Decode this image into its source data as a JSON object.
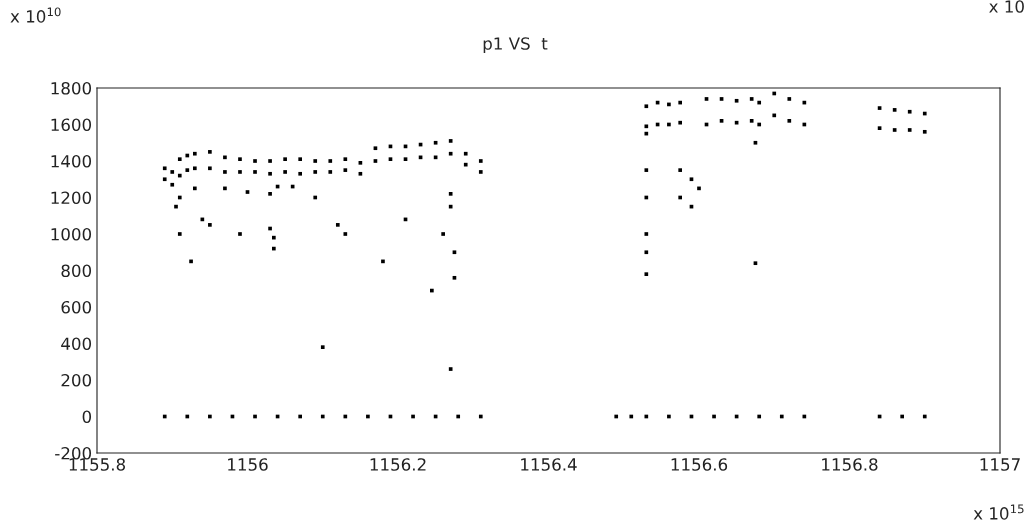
{
  "chart_data": {
    "type": "scatter",
    "title": "p1 VS  t",
    "annotations": [
      "x 10$^{10}$",
      "x 10",
      "x 10$^{15}$"
    ],
    "xlim": [
      1155.8,
      1157
    ],
    "xticks": [
      1155.8,
      1156,
      1156.2,
      1156.4,
      1156.6,
      1156.8,
      1157
    ],
    "ylim": [
      -200,
      1800
    ],
    "yticks": [
      -200,
      0,
      200,
      400,
      600,
      800,
      1000,
      1200,
      1400,
      1600,
      1800
    ],
    "grid": false,
    "legend": false,
    "marker": "square",
    "series": [
      {
        "color": "#000000",
        "x": [
          1155.89,
          1155.89,
          1155.9,
          1155.9,
          1155.91,
          1155.91,
          1155.92,
          1155.92,
          1155.93,
          1155.93,
          1155.95,
          1155.95,
          1155.97,
          1155.97,
          1155.99,
          1155.99,
          1156.01,
          1156.01,
          1156.03,
          1156.03,
          1156.05,
          1156.05,
          1156.07,
          1156.07,
          1156.09,
          1156.09,
          1156.11,
          1156.11,
          1156.13,
          1156.13,
          1156.15,
          1156.15,
          1156.17,
          1156.17,
          1156.19,
          1156.19,
          1156.21,
          1156.21,
          1156.23,
          1156.23,
          1156.25,
          1156.25,
          1156.27,
          1156.27,
          1156.29,
          1156.29,
          1156.31,
          1156.31,
          1155.91,
          1155.93,
          1155.97,
          1156.0,
          1156.03,
          1156.06,
          1156.09,
          1156.04,
          1155.905,
          1155.91,
          1155.925,
          1155.94,
          1155.95,
          1155.99,
          1156.03,
          1156.035,
          1156.035,
          1156.1,
          1156.12,
          1156.13,
          1156.18,
          1156.21,
          1156.245,
          1156.26,
          1156.27,
          1156.27,
          1156.275,
          1156.275,
          1156.27,
          1155.89,
          1155.92,
          1155.95,
          1155.98,
          1156.01,
          1156.04,
          1156.07,
          1156.1,
          1156.13,
          1156.16,
          1156.19,
          1156.22,
          1156.25,
          1156.28,
          1156.31,
          1156.49,
          1156.51,
          1156.53,
          1156.56,
          1156.59,
          1156.62,
          1156.65,
          1156.68,
          1156.71,
          1156.74,
          1156.84,
          1156.87,
          1156.9,
          1156.53,
          1156.53,
          1156.545,
          1156.545,
          1156.56,
          1156.56,
          1156.575,
          1156.575,
          1156.53,
          1156.53,
          1156.53,
          1156.53,
          1156.53,
          1156.53,
          1156.575,
          1156.575,
          1156.59,
          1156.59,
          1156.6,
          1156.61,
          1156.61,
          1156.63,
          1156.63,
          1156.65,
          1156.65,
          1156.67,
          1156.67,
          1156.68,
          1156.68,
          1156.675,
          1156.675,
          1156.7,
          1156.7,
          1156.72,
          1156.72,
          1156.74,
          1156.74,
          1156.84,
          1156.84,
          1156.86,
          1156.86,
          1156.88,
          1156.88,
          1156.9,
          1156.9
        ],
        "values": [
          1300,
          1360,
          1270,
          1340,
          1320,
          1410,
          1350,
          1430,
          1360,
          1440,
          1360,
          1450,
          1340,
          1420,
          1340,
          1410,
          1340,
          1400,
          1330,
          1400,
          1340,
          1410,
          1330,
          1410,
          1340,
          1400,
          1340,
          1400,
          1350,
          1410,
          1330,
          1390,
          1400,
          1470,
          1410,
          1480,
          1410,
          1480,
          1420,
          1490,
          1420,
          1500,
          1440,
          1510,
          1380,
          1440,
          1340,
          1400,
          1200,
          1250,
          1250,
          1230,
          1220,
          1260,
          1200,
          1260,
          1150,
          1000,
          850,
          1080,
          1050,
          1000,
          1030,
          980,
          920,
          380,
          1050,
          1000,
          850,
          1080,
          690,
          1000,
          1220,
          1150,
          900,
          760,
          260,
          0,
          0,
          0,
          0,
          0,
          0,
          0,
          0,
          0,
          0,
          0,
          0,
          0,
          0,
          0,
          0,
          0,
          0,
          0,
          0,
          0,
          0,
          0,
          0,
          0,
          0,
          0,
          0,
          1590,
          1700,
          1600,
          1720,
          1600,
          1710,
          1610,
          1720,
          1550,
          1350,
          1200,
          1000,
          900,
          780,
          1350,
          1200,
          1150,
          1300,
          1250,
          1600,
          1740,
          1620,
          1740,
          1610,
          1730,
          1620,
          1740,
          1600,
          1720,
          1500,
          840,
          1650,
          1770,
          1620,
          1740,
          1600,
          1720,
          1580,
          1690,
          1570,
          1680,
          1570,
          1670,
          1560,
          1660
        ]
      }
    ]
  }
}
